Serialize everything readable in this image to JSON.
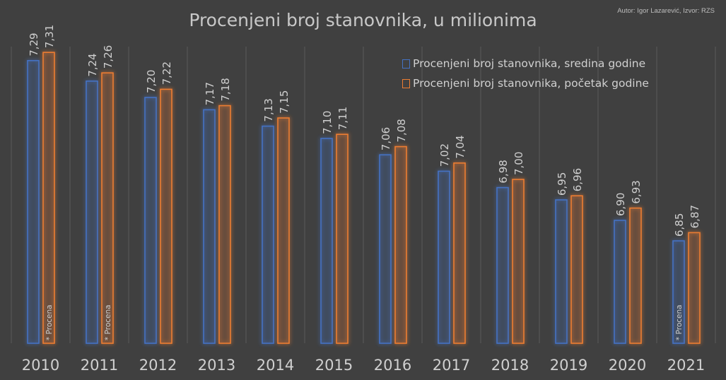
{
  "chart_data": {
    "type": "bar",
    "title": "Procenjeni broj stanovnika, u milionima",
    "credit": "Autor: Igor Lazarević, Izvor: RZS",
    "categories": [
      "2010",
      "2011",
      "2012",
      "2013",
      "2014",
      "2015",
      "2016",
      "2017",
      "2018",
      "2019",
      "2020",
      "2021"
    ],
    "series": [
      {
        "name": "Procenjeni broj stanovnika, sredina godine",
        "color": "#4472c4",
        "values": [
          7.29,
          7.24,
          7.2,
          7.17,
          7.13,
          7.1,
          7.06,
          7.02,
          6.98,
          6.95,
          6.9,
          6.85
        ],
        "labels": [
          "7,29",
          "7,24",
          "7,20",
          "7,17",
          "7,13",
          "7,10",
          "7,06",
          "7,02",
          "6,98",
          "6,95",
          "6,90",
          "6,85"
        ]
      },
      {
        "name": "Procenjeni broj stanovnika, početak godine",
        "color": "#ed7d31",
        "values": [
          7.31,
          7.26,
          7.22,
          7.18,
          7.15,
          7.11,
          7.08,
          7.04,
          7.0,
          6.96,
          6.93,
          6.87
        ],
        "labels": [
          "7,31",
          "7,26",
          "7,22",
          "7,18",
          "7,15",
          "7,11",
          "7,08",
          "7,04",
          "7,00",
          "6,96",
          "6,93",
          "6,87"
        ]
      }
    ],
    "annotations": [
      {
        "text": "* Procena",
        "category": "2010",
        "series": 1
      },
      {
        "text": "* Procena",
        "category": "2011",
        "series": 1
      },
      {
        "text": "* Procena",
        "category": "2021",
        "series": 0
      }
    ],
    "ylim": [
      6.6,
      7.4
    ],
    "grid": "vertical",
    "legend": "top-right"
  }
}
